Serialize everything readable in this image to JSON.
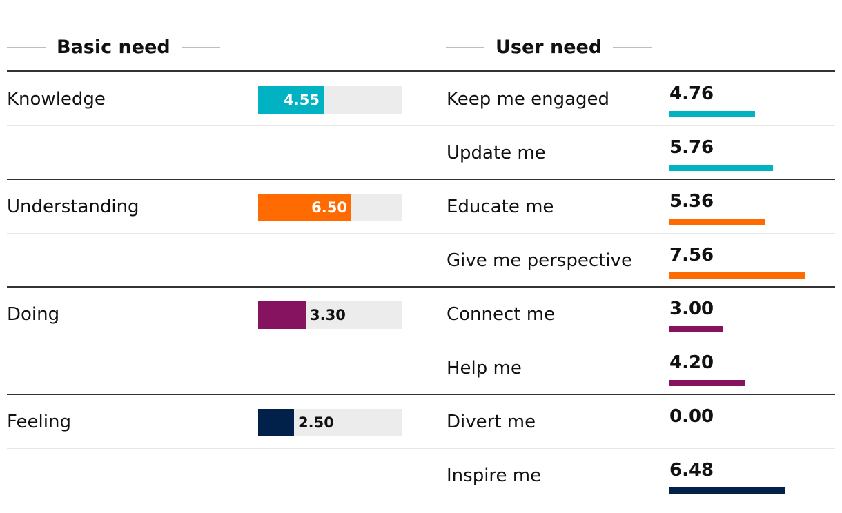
{
  "header": {
    "basic_title": "Basic need",
    "user_title": "User need"
  },
  "chart_data": {
    "type": "bar",
    "title": "",
    "xlabel": "",
    "ylabel": "",
    "xlim": [
      0,
      10
    ],
    "grid": false,
    "legend": "none",
    "groups": [
      {
        "basic": "Knowledge",
        "basic_value": 4.55,
        "basic_value_label": "4.55",
        "color": "#00b2c2",
        "user_needs": [
          {
            "label": "Keep me engaged",
            "value": 4.76,
            "value_label": "4.76"
          },
          {
            "label": "Update me",
            "value": 5.76,
            "value_label": "5.76"
          }
        ]
      },
      {
        "basic": "Understanding",
        "basic_value": 6.5,
        "basic_value_label": "6.50",
        "color": "#ff6b00",
        "user_needs": [
          {
            "label": "Educate me",
            "value": 5.36,
            "value_label": "5.36"
          },
          {
            "label": "Give me perspective",
            "value": 7.56,
            "value_label": "7.56"
          }
        ]
      },
      {
        "basic": "Doing",
        "basic_value": 3.3,
        "basic_value_label": "3.30",
        "color": "#85135f",
        "user_needs": [
          {
            "label": "Connect me",
            "value": 3.0,
            "value_label": "3.00"
          },
          {
            "label": "Help me",
            "value": 4.2,
            "value_label": "4.20"
          }
        ]
      },
      {
        "basic": "Feeling",
        "basic_value": 2.5,
        "basic_value_label": "2.50",
        "color": "#01204a",
        "user_needs": [
          {
            "label": "Divert me",
            "value": 0.0,
            "value_label": "0.00"
          },
          {
            "label": "Inspire me",
            "value": 6.48,
            "value_label": "6.48"
          }
        ]
      }
    ]
  }
}
